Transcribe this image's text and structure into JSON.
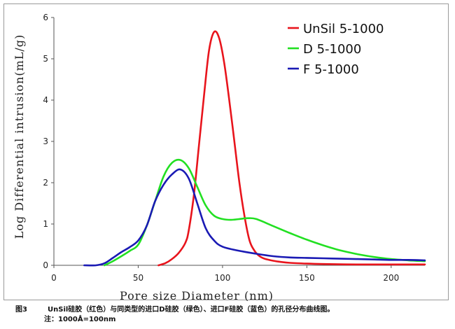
{
  "chart_data": {
    "type": "line",
    "xlabel": "Pore size Diameter  (nm)",
    "ylabel": "Log Differential intrusion(mL/g)",
    "xlim": [
      0,
      220
    ],
    "ylim": [
      0,
      6
    ],
    "xticks": [
      0,
      50,
      100,
      150,
      200
    ],
    "yticks": [
      0,
      1,
      2,
      3,
      4,
      5,
      6
    ],
    "grid": false,
    "legend_position": "top-right",
    "series": [
      {
        "name": "UnSil 5-1000",
        "color": "#e8141c",
        "x": [
          62,
          66,
          70,
          74,
          78,
          80,
          83,
          86,
          89,
          92,
          95,
          98,
          101,
          104,
          107,
          110,
          113,
          116,
          119,
          122,
          125,
          130,
          135,
          140,
          150,
          160,
          180,
          200,
          220
        ],
        "y": [
          0.0,
          0.05,
          0.15,
          0.3,
          0.55,
          0.85,
          1.7,
          2.9,
          4.1,
          5.2,
          5.65,
          5.5,
          4.9,
          4.0,
          3.0,
          2.0,
          1.2,
          0.6,
          0.35,
          0.22,
          0.16,
          0.11,
          0.08,
          0.06,
          0.04,
          0.03,
          0.02,
          0.02,
          0.02
        ]
      },
      {
        "name": "D 5-1000",
        "color": "#22e022",
        "x": [
          30,
          35,
          40,
          45,
          50,
          55,
          60,
          65,
          70,
          75,
          80,
          85,
          90,
          95,
          100,
          105,
          110,
          115,
          120,
          130,
          140,
          150,
          160,
          170,
          180,
          190,
          200,
          210,
          220
        ],
        "y": [
          0.0,
          0.1,
          0.22,
          0.35,
          0.5,
          0.95,
          1.55,
          2.15,
          2.48,
          2.55,
          2.35,
          1.9,
          1.45,
          1.2,
          1.12,
          1.1,
          1.12,
          1.14,
          1.12,
          0.95,
          0.78,
          0.62,
          0.48,
          0.36,
          0.27,
          0.2,
          0.15,
          0.12,
          0.1
        ]
      },
      {
        "name": "F 5-1000",
        "color": "#1a1ab4",
        "x": [
          18,
          25,
          30,
          35,
          40,
          45,
          50,
          55,
          60,
          65,
          70,
          75,
          80,
          85,
          90,
          95,
          100,
          110,
          120,
          130,
          140,
          150,
          160,
          170,
          180,
          190,
          200,
          210,
          220
        ],
        "y": [
          0.0,
          0.0,
          0.05,
          0.18,
          0.32,
          0.44,
          0.6,
          0.95,
          1.55,
          1.95,
          2.2,
          2.32,
          2.1,
          1.5,
          0.9,
          0.6,
          0.45,
          0.35,
          0.28,
          0.22,
          0.19,
          0.18,
          0.17,
          0.16,
          0.15,
          0.14,
          0.13,
          0.13,
          0.12
        ]
      }
    ]
  },
  "caption": {
    "label": "图3",
    "text": "UnSil硅胶（红色）与同类型的进口D硅胶（绿色）、进口F硅胶（蓝色）的孔径分布曲线图。",
    "note": "注：1000Å=100nm"
  }
}
